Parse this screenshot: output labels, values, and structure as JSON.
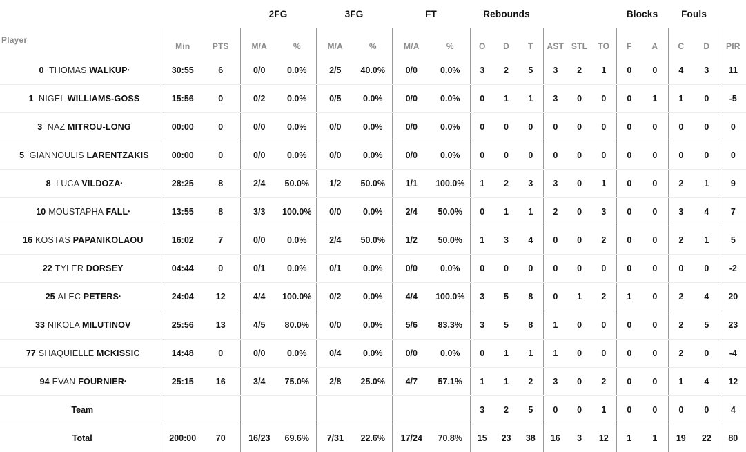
{
  "table": {
    "player_header": "Player",
    "group_headers": [
      "2FG",
      "3FG",
      "FT",
      "Rebounds",
      "Blocks",
      "Fouls"
    ],
    "sub_headers": [
      "Min",
      "PTS",
      "M/A",
      "%",
      "M/A",
      "%",
      "M/A",
      "%",
      "O",
      "D",
      "T",
      "AST",
      "STL",
      "TO",
      "F",
      "A",
      "C",
      "D",
      "PIR"
    ],
    "starter_marker": "•",
    "rows": [
      {
        "number": "0",
        "first": "THOMAS",
        "last": "WALKUP",
        "starter": true,
        "stats": [
          "30:55",
          "6",
          "0/0",
          "0.0%",
          "2/5",
          "40.0%",
          "0/0",
          "0.0%",
          "3",
          "2",
          "5",
          "3",
          "2",
          "1",
          "0",
          "0",
          "4",
          "3",
          "11"
        ]
      },
      {
        "number": "1",
        "first": "NIGEL",
        "last": "WILLIAMS-GOSS",
        "starter": false,
        "stats": [
          "15:56",
          "0",
          "0/2",
          "0.0%",
          "0/5",
          "0.0%",
          "0/0",
          "0.0%",
          "0",
          "1",
          "1",
          "3",
          "0",
          "0",
          "0",
          "1",
          "1",
          "0",
          "-5"
        ]
      },
      {
        "number": "3",
        "first": "NAZ",
        "last": "MITROU-LONG",
        "starter": false,
        "stats": [
          "00:00",
          "0",
          "0/0",
          "0.0%",
          "0/0",
          "0.0%",
          "0/0",
          "0.0%",
          "0",
          "0",
          "0",
          "0",
          "0",
          "0",
          "0",
          "0",
          "0",
          "0",
          "0"
        ]
      },
      {
        "number": "5",
        "first": "GIANNOULIS",
        "last": "LARENTZAKIS",
        "starter": false,
        "stats": [
          "00:00",
          "0",
          "0/0",
          "0.0%",
          "0/0",
          "0.0%",
          "0/0",
          "0.0%",
          "0",
          "0",
          "0",
          "0",
          "0",
          "0",
          "0",
          "0",
          "0",
          "0",
          "0"
        ]
      },
      {
        "number": "8",
        "first": "LUCA",
        "last": "VILDOZA",
        "starter": true,
        "stats": [
          "28:25",
          "8",
          "2/4",
          "50.0%",
          "1/2",
          "50.0%",
          "1/1",
          "100.0%",
          "1",
          "2",
          "3",
          "3",
          "0",
          "1",
          "0",
          "0",
          "2",
          "1",
          "9"
        ]
      },
      {
        "number": "10",
        "first": "MOUSTAPHA",
        "last": "FALL",
        "starter": true,
        "stats": [
          "13:55",
          "8",
          "3/3",
          "100.0%",
          "0/0",
          "0.0%",
          "2/4",
          "50.0%",
          "0",
          "1",
          "1",
          "2",
          "0",
          "3",
          "0",
          "0",
          "3",
          "4",
          "7"
        ]
      },
      {
        "number": "16",
        "first": "KOSTAS",
        "last": "PAPANIKOLAOU",
        "starter": false,
        "stats": [
          "16:02",
          "7",
          "0/0",
          "0.0%",
          "2/4",
          "50.0%",
          "1/2",
          "50.0%",
          "1",
          "3",
          "4",
          "0",
          "0",
          "2",
          "0",
          "0",
          "2",
          "1",
          "5"
        ]
      },
      {
        "number": "22",
        "first": "TYLER",
        "last": "DORSEY",
        "starter": false,
        "stats": [
          "04:44",
          "0",
          "0/1",
          "0.0%",
          "0/1",
          "0.0%",
          "0/0",
          "0.0%",
          "0",
          "0",
          "0",
          "0",
          "0",
          "0",
          "0",
          "0",
          "0",
          "0",
          "-2"
        ]
      },
      {
        "number": "25",
        "first": "ALEC",
        "last": "PETERS",
        "starter": true,
        "stats": [
          "24:04",
          "12",
          "4/4",
          "100.0%",
          "0/2",
          "0.0%",
          "4/4",
          "100.0%",
          "3",
          "5",
          "8",
          "0",
          "1",
          "2",
          "1",
          "0",
          "2",
          "4",
          "20"
        ]
      },
      {
        "number": "33",
        "first": "NIKOLA",
        "last": "MILUTINOV",
        "starter": false,
        "stats": [
          "25:56",
          "13",
          "4/5",
          "80.0%",
          "0/0",
          "0.0%",
          "5/6",
          "83.3%",
          "3",
          "5",
          "8",
          "1",
          "0",
          "0",
          "0",
          "0",
          "2",
          "5",
          "23"
        ]
      },
      {
        "number": "77",
        "first": "SHAQUIELLE",
        "last": "MCKISSIC",
        "starter": false,
        "stats": [
          "14:48",
          "0",
          "0/0",
          "0.0%",
          "0/4",
          "0.0%",
          "0/0",
          "0.0%",
          "0",
          "1",
          "1",
          "1",
          "0",
          "0",
          "0",
          "0",
          "2",
          "0",
          "-4"
        ]
      },
      {
        "number": "94",
        "first": "EVAN",
        "last": "FOURNIER",
        "starter": true,
        "stats": [
          "25:15",
          "16",
          "3/4",
          "75.0%",
          "2/8",
          "25.0%",
          "4/7",
          "57.1%",
          "1",
          "1",
          "2",
          "3",
          "0",
          "2",
          "0",
          "0",
          "1",
          "4",
          "12"
        ]
      }
    ],
    "team_row": {
      "label": "Team",
      "stats": [
        "",
        "",
        "",
        "",
        "",
        "",
        "",
        "",
        "3",
        "2",
        "5",
        "0",
        "0",
        "1",
        "0",
        "0",
        "0",
        "0",
        "4"
      ]
    },
    "total_row": {
      "label": "Total",
      "stats": [
        "200:00",
        "70",
        "16/23",
        "69.6%",
        "7/31",
        "22.6%",
        "17/24",
        "70.8%",
        "15",
        "23",
        "38",
        "16",
        "3",
        "12",
        "1",
        "1",
        "19",
        "22",
        "80"
      ]
    }
  },
  "colors": {
    "header_gray": "#8d8d8d",
    "text_black": "#161616",
    "divider_gray": "#9b9b9b",
    "row_line_gray": "#ededed",
    "background": "#ffffff"
  }
}
